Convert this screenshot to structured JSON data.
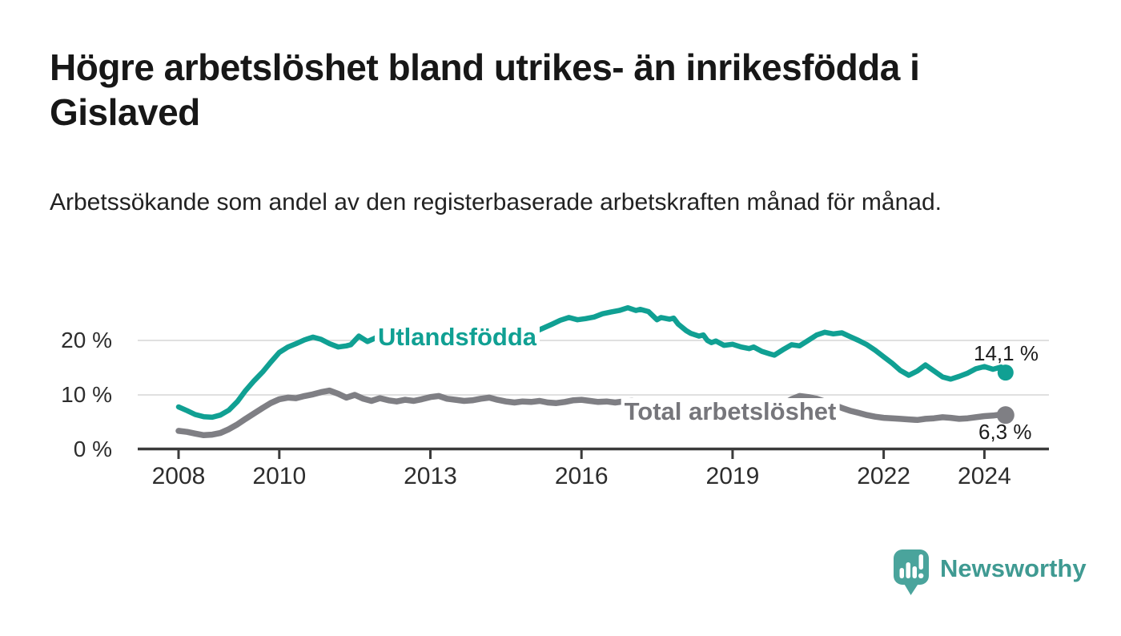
{
  "header": {
    "title": "Högre arbetslöshet bland utrikes- än inrikesfödda i Gislaved",
    "subtitle": "Arbetssökande som andel av den registerbaserade arbetskraften månad för månad."
  },
  "chart_data": {
    "type": "line",
    "title": "Högre arbetslöshet bland utrikes- än inrikesfödda i Gislaved",
    "subtitle": "Arbetssökande som andel av den registerbaserade arbetskraften månad för månad.",
    "xlabel": "",
    "ylabel": "",
    "xlim": [
      2007.8,
      2025.3
    ],
    "ylim": [
      0,
      27
    ],
    "grid": "horizontal",
    "legend_position": "inline",
    "x_ticks": [
      {
        "year": 2008,
        "label": "2008"
      },
      {
        "year": 2010,
        "label": "2010"
      },
      {
        "year": 2013,
        "label": "2013"
      },
      {
        "year": 2016,
        "label": "2016"
      },
      {
        "year": 2019,
        "label": "2019"
      },
      {
        "year": 2022,
        "label": "2022"
      },
      {
        "year": 2024,
        "label": "2024"
      }
    ],
    "y_ticks": [
      {
        "value": 0,
        "label": "0 %"
      },
      {
        "value": 10,
        "label": "10 %"
      },
      {
        "value": 20,
        "label": "20 %"
      }
    ],
    "series": [
      {
        "name": "Utlandsfödda",
        "color": "#10a093",
        "end_value": 14.1,
        "end_label": "14,1 %",
        "points": [
          [
            2008.0,
            7.8
          ],
          [
            2008.17,
            7.1
          ],
          [
            2008.33,
            6.4
          ],
          [
            2008.5,
            6.0
          ],
          [
            2008.67,
            5.9
          ],
          [
            2008.83,
            6.3
          ],
          [
            2009.0,
            7.2
          ],
          [
            2009.17,
            8.8
          ],
          [
            2009.33,
            10.8
          ],
          [
            2009.5,
            12.6
          ],
          [
            2009.67,
            14.2
          ],
          [
            2009.83,
            16.0
          ],
          [
            2010.0,
            17.8
          ],
          [
            2010.17,
            18.8
          ],
          [
            2010.33,
            19.4
          ],
          [
            2010.5,
            20.1
          ],
          [
            2010.67,
            20.6
          ],
          [
            2010.83,
            20.2
          ],
          [
            2011.0,
            19.4
          ],
          [
            2011.17,
            18.8
          ],
          [
            2011.33,
            19.0
          ],
          [
            2011.42,
            19.2
          ],
          [
            2011.58,
            20.8
          ],
          [
            2011.75,
            19.8
          ],
          [
            2011.92,
            20.5
          ],
          [
            2012.08,
            21.0
          ],
          [
            2012.25,
            20.7
          ],
          [
            2012.42,
            21.1
          ],
          [
            2012.58,
            20.8
          ],
          [
            2012.75,
            20.9
          ],
          [
            2012.92,
            20.7
          ],
          [
            2013.08,
            20.5
          ],
          [
            2013.25,
            20.6
          ],
          [
            2013.42,
            20.4
          ],
          [
            2013.58,
            20.5
          ],
          [
            2013.75,
            20.6
          ],
          [
            2013.92,
            20.4
          ],
          [
            2014.08,
            20.6
          ],
          [
            2014.25,
            20.5
          ],
          [
            2014.42,
            20.7
          ],
          [
            2014.58,
            20.6
          ],
          [
            2014.75,
            20.8
          ],
          [
            2014.92,
            21.1
          ],
          [
            2015.08,
            21.6
          ],
          [
            2015.25,
            22.3
          ],
          [
            2015.42,
            23.0
          ],
          [
            2015.58,
            23.7
          ],
          [
            2015.75,
            24.2
          ],
          [
            2015.92,
            23.8
          ],
          [
            2016.08,
            24.0
          ],
          [
            2016.25,
            24.3
          ],
          [
            2016.42,
            24.9
          ],
          [
            2016.58,
            25.2
          ],
          [
            2016.75,
            25.5
          ],
          [
            2016.92,
            26.0
          ],
          [
            2017.08,
            25.5
          ],
          [
            2017.17,
            25.7
          ],
          [
            2017.33,
            25.3
          ],
          [
            2017.42,
            24.5
          ],
          [
            2017.5,
            23.8
          ],
          [
            2017.58,
            24.2
          ],
          [
            2017.75,
            23.9
          ],
          [
            2017.83,
            24.1
          ],
          [
            2017.92,
            23.0
          ],
          [
            2018.08,
            21.8
          ],
          [
            2018.17,
            21.3
          ],
          [
            2018.33,
            20.8
          ],
          [
            2018.42,
            21.0
          ],
          [
            2018.5,
            20.0
          ],
          [
            2018.58,
            19.6
          ],
          [
            2018.67,
            19.9
          ],
          [
            2018.83,
            19.1
          ],
          [
            2019.0,
            19.3
          ],
          [
            2019.17,
            18.8
          ],
          [
            2019.33,
            18.5
          ],
          [
            2019.42,
            18.8
          ],
          [
            2019.58,
            18.0
          ],
          [
            2019.75,
            17.5
          ],
          [
            2019.83,
            17.3
          ],
          [
            2020.0,
            18.3
          ],
          [
            2020.17,
            19.2
          ],
          [
            2020.33,
            19.0
          ],
          [
            2020.5,
            20.0
          ],
          [
            2020.67,
            21.0
          ],
          [
            2020.83,
            21.5
          ],
          [
            2021.0,
            21.2
          ],
          [
            2021.17,
            21.4
          ],
          [
            2021.33,
            20.7
          ],
          [
            2021.5,
            20.0
          ],
          [
            2021.67,
            19.2
          ],
          [
            2021.83,
            18.2
          ],
          [
            2022.0,
            17.0
          ],
          [
            2022.17,
            15.8
          ],
          [
            2022.33,
            14.5
          ],
          [
            2022.5,
            13.6
          ],
          [
            2022.67,
            14.4
          ],
          [
            2022.83,
            15.5
          ],
          [
            2023.0,
            14.4
          ],
          [
            2023.17,
            13.3
          ],
          [
            2023.33,
            12.9
          ],
          [
            2023.5,
            13.4
          ],
          [
            2023.67,
            14.0
          ],
          [
            2023.83,
            14.8
          ],
          [
            2024.0,
            15.2
          ],
          [
            2024.17,
            14.7
          ],
          [
            2024.33,
            15.1
          ],
          [
            2024.42,
            14.1
          ]
        ]
      },
      {
        "name": "Total arbetslöshet",
        "color": "#7f7f84",
        "end_value": 6.3,
        "end_label": "6,3 %",
        "points": [
          [
            2008.0,
            3.4
          ],
          [
            2008.17,
            3.2
          ],
          [
            2008.33,
            2.9
          ],
          [
            2008.5,
            2.6
          ],
          [
            2008.67,
            2.7
          ],
          [
            2008.83,
            3.0
          ],
          [
            2009.0,
            3.7
          ],
          [
            2009.17,
            4.6
          ],
          [
            2009.33,
            5.6
          ],
          [
            2009.5,
            6.6
          ],
          [
            2009.67,
            7.6
          ],
          [
            2009.83,
            8.5
          ],
          [
            2010.0,
            9.2
          ],
          [
            2010.17,
            9.5
          ],
          [
            2010.33,
            9.4
          ],
          [
            2010.5,
            9.8
          ],
          [
            2010.67,
            10.1
          ],
          [
            2010.83,
            10.5
          ],
          [
            2011.0,
            10.8
          ],
          [
            2011.17,
            10.2
          ],
          [
            2011.33,
            9.5
          ],
          [
            2011.5,
            10.0
          ],
          [
            2011.67,
            9.3
          ],
          [
            2011.83,
            8.9
          ],
          [
            2012.0,
            9.4
          ],
          [
            2012.17,
            9.0
          ],
          [
            2012.33,
            8.8
          ],
          [
            2012.5,
            9.1
          ],
          [
            2012.67,
            8.9
          ],
          [
            2012.83,
            9.2
          ],
          [
            2013.0,
            9.6
          ],
          [
            2013.17,
            9.8
          ],
          [
            2013.33,
            9.3
          ],
          [
            2013.5,
            9.1
          ],
          [
            2013.67,
            8.9
          ],
          [
            2013.83,
            9.0
          ],
          [
            2014.0,
            9.3
          ],
          [
            2014.17,
            9.5
          ],
          [
            2014.33,
            9.1
          ],
          [
            2014.5,
            8.8
          ],
          [
            2014.67,
            8.6
          ],
          [
            2014.83,
            8.8
          ],
          [
            2015.0,
            8.7
          ],
          [
            2015.17,
            8.9
          ],
          [
            2015.33,
            8.6
          ],
          [
            2015.5,
            8.5
          ],
          [
            2015.67,
            8.7
          ],
          [
            2015.83,
            9.0
          ],
          [
            2016.0,
            9.1
          ],
          [
            2016.17,
            8.9
          ],
          [
            2016.33,
            8.7
          ],
          [
            2016.5,
            8.8
          ],
          [
            2016.67,
            8.6
          ],
          [
            2016.83,
            8.8
          ],
          [
            2017.0,
            8.9
          ],
          [
            2017.17,
            8.7
          ],
          [
            2017.33,
            8.5
          ],
          [
            2017.5,
            8.4
          ],
          [
            2017.67,
            8.3
          ],
          [
            2017.83,
            8.2
          ],
          [
            2018.0,
            8.1
          ],
          [
            2018.17,
            8.0
          ],
          [
            2018.33,
            7.8
          ],
          [
            2018.5,
            7.7
          ],
          [
            2018.67,
            7.6
          ],
          [
            2018.83,
            7.5
          ],
          [
            2019.0,
            7.4
          ],
          [
            2019.17,
            7.5
          ],
          [
            2019.33,
            7.6
          ],
          [
            2019.5,
            7.7
          ],
          [
            2019.67,
            7.8
          ],
          [
            2019.83,
            8.0
          ],
          [
            2020.0,
            8.3
          ],
          [
            2020.17,
            9.2
          ],
          [
            2020.33,
            9.8
          ],
          [
            2020.5,
            9.6
          ],
          [
            2020.67,
            9.3
          ],
          [
            2020.83,
            8.8
          ],
          [
            2021.0,
            8.2
          ],
          [
            2021.17,
            7.6
          ],
          [
            2021.33,
            7.1
          ],
          [
            2021.5,
            6.7
          ],
          [
            2021.67,
            6.3
          ],
          [
            2021.83,
            6.0
          ],
          [
            2022.0,
            5.8
          ],
          [
            2022.17,
            5.7
          ],
          [
            2022.33,
            5.6
          ],
          [
            2022.5,
            5.5
          ],
          [
            2022.67,
            5.4
          ],
          [
            2022.83,
            5.6
          ],
          [
            2023.0,
            5.7
          ],
          [
            2023.17,
            5.9
          ],
          [
            2023.33,
            5.8
          ],
          [
            2023.5,
            5.6
          ],
          [
            2023.67,
            5.7
          ],
          [
            2023.83,
            5.9
          ],
          [
            2024.0,
            6.1
          ],
          [
            2024.17,
            6.2
          ],
          [
            2024.33,
            6.4
          ],
          [
            2024.42,
            6.3
          ]
        ]
      }
    ]
  },
  "style": {
    "grid_color": "#dcdcdc",
    "axis_color": "#3b3b3b",
    "accent_teal": "#10a093",
    "accent_gray": "#7f7f84"
  },
  "branding": {
    "name": "Newsworthy",
    "color": "#3f9a92",
    "icon": "speech-bubble-bar-chart-icon"
  }
}
